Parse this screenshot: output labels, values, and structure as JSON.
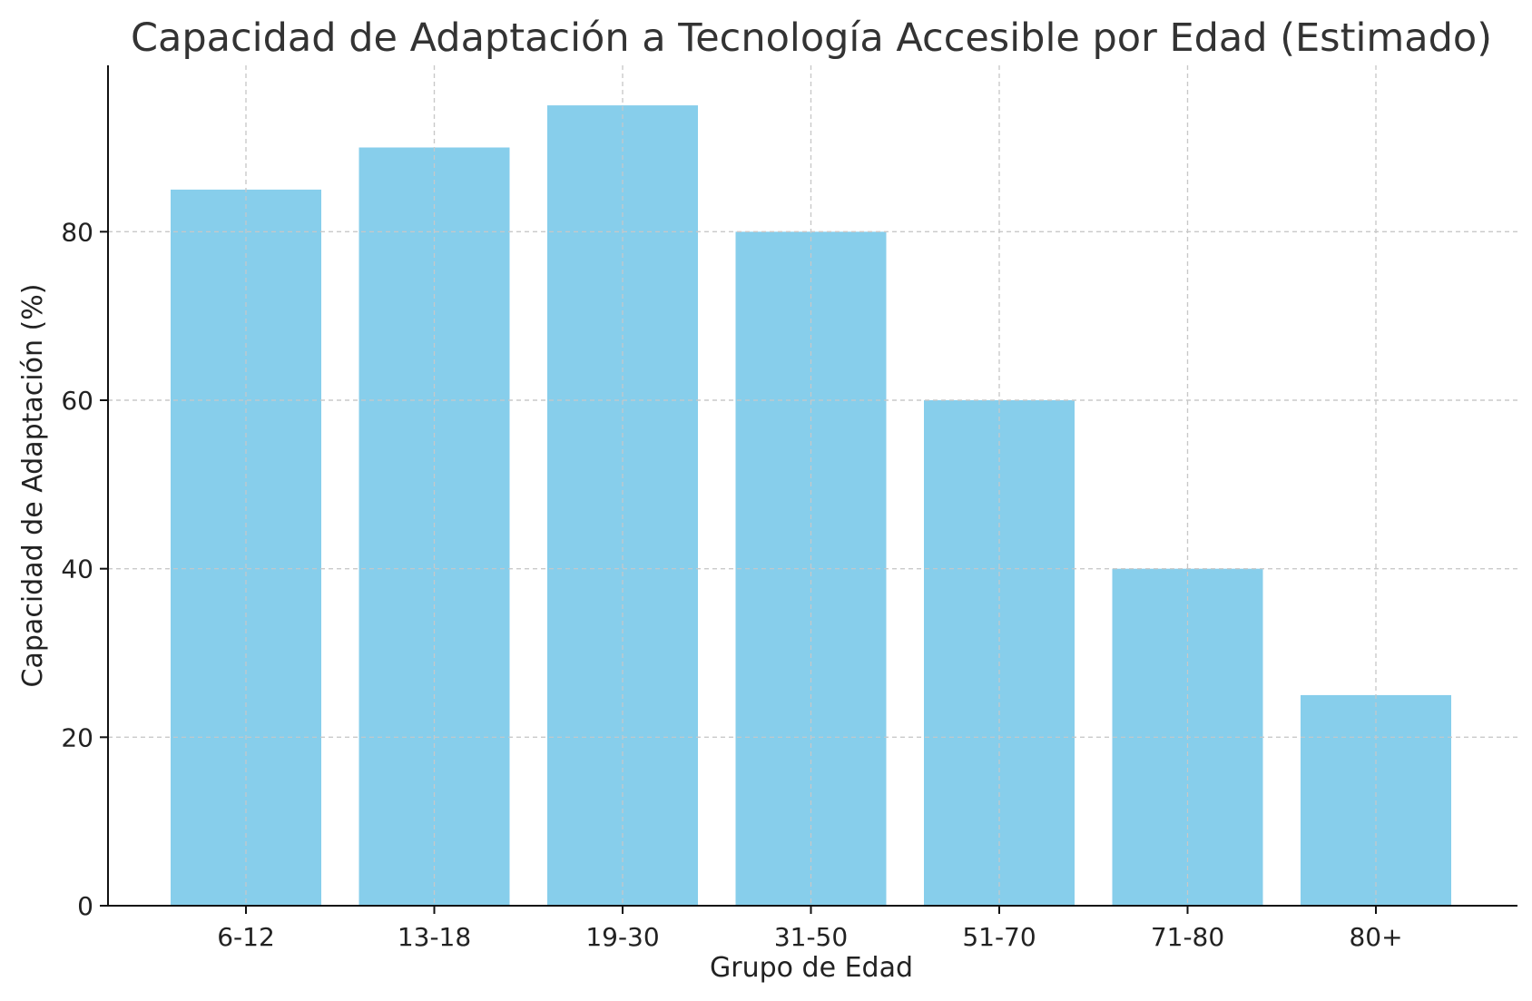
{
  "chart_data": {
    "type": "bar",
    "title": "Capacidad de Adaptación a Tecnología Accesible por Edad (Estimado)",
    "xlabel": "Grupo de Edad",
    "ylabel": "Capacidad de Adaptación (%)",
    "categories": [
      "6-12",
      "13-18",
      "19-30",
      "31-50",
      "51-70",
      "71-80",
      "80+"
    ],
    "values": [
      85,
      90,
      95,
      80,
      60,
      40,
      25
    ],
    "ylim": [
      0,
      99.75
    ],
    "yticks": [
      0,
      20,
      40,
      60,
      80
    ],
    "grid": true,
    "bar_color": "#87ceeb"
  }
}
